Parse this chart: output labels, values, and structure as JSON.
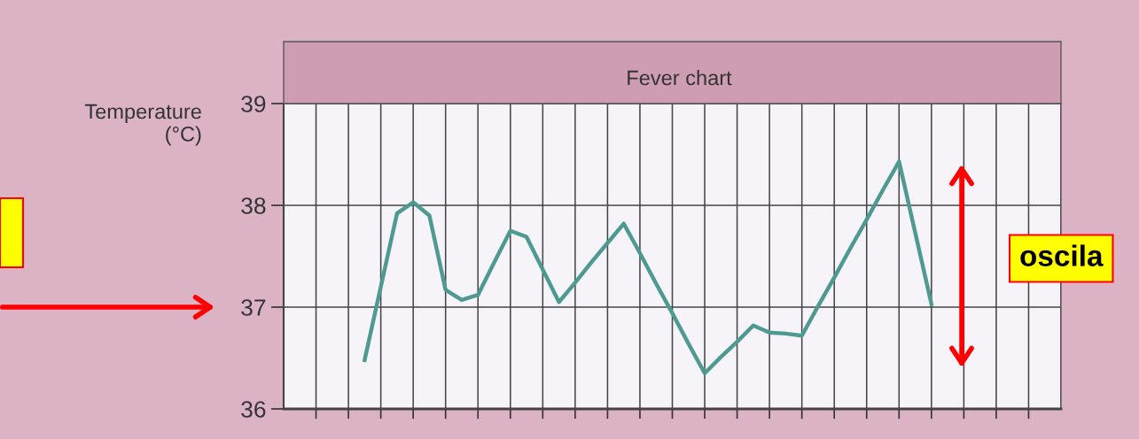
{
  "chart_data": {
    "type": "line",
    "title": "Fever chart",
    "ylabel": "Temperature\n(°C)",
    "categories": [
      null,
      null,
      null,
      null,
      null,
      null,
      null,
      null,
      null,
      null,
      null,
      null,
      null,
      null,
      null,
      null,
      null,
      null,
      null,
      null,
      null,
      null,
      null,
      null,
      null,
      null,
      null,
      null,
      null,
      null,
      null,
      null,
      null,
      null,
      null,
      null,
      null,
      null,
      null,
      null,
      null,
      null,
      null,
      null,
      null,
      null,
      null,
      null,
      null
    ],
    "series": [
      {
        "color": "#4e9a92",
        "values": [
          null,
          null,
          null,
          null,
          null,
          36.48,
          37.2,
          37.92,
          38.03,
          37.9,
          37.17,
          37.07,
          37.12,
          37.44,
          37.75,
          37.69,
          37.37,
          37.05,
          37.24,
          37.44,
          37.63,
          37.82,
          37.53,
          37.23,
          36.94,
          36.64,
          36.35,
          36.51,
          36.66,
          36.82,
          36.75,
          36.74,
          36.72,
          37.01,
          37.29,
          37.58,
          37.86,
          38.15,
          38.43,
          37.73,
          37.03,
          null,
          null,
          null,
          null,
          null,
          null,
          null,
          null
        ]
      }
    ],
    "ylim": [
      36,
      39
    ],
    "yticks": [
      36,
      37,
      38,
      39
    ],
    "grid": true,
    "tick_labels": "y",
    "marker": "none",
    "line_style": "solid",
    "annotations": [
      "oscila"
    ]
  }
}
